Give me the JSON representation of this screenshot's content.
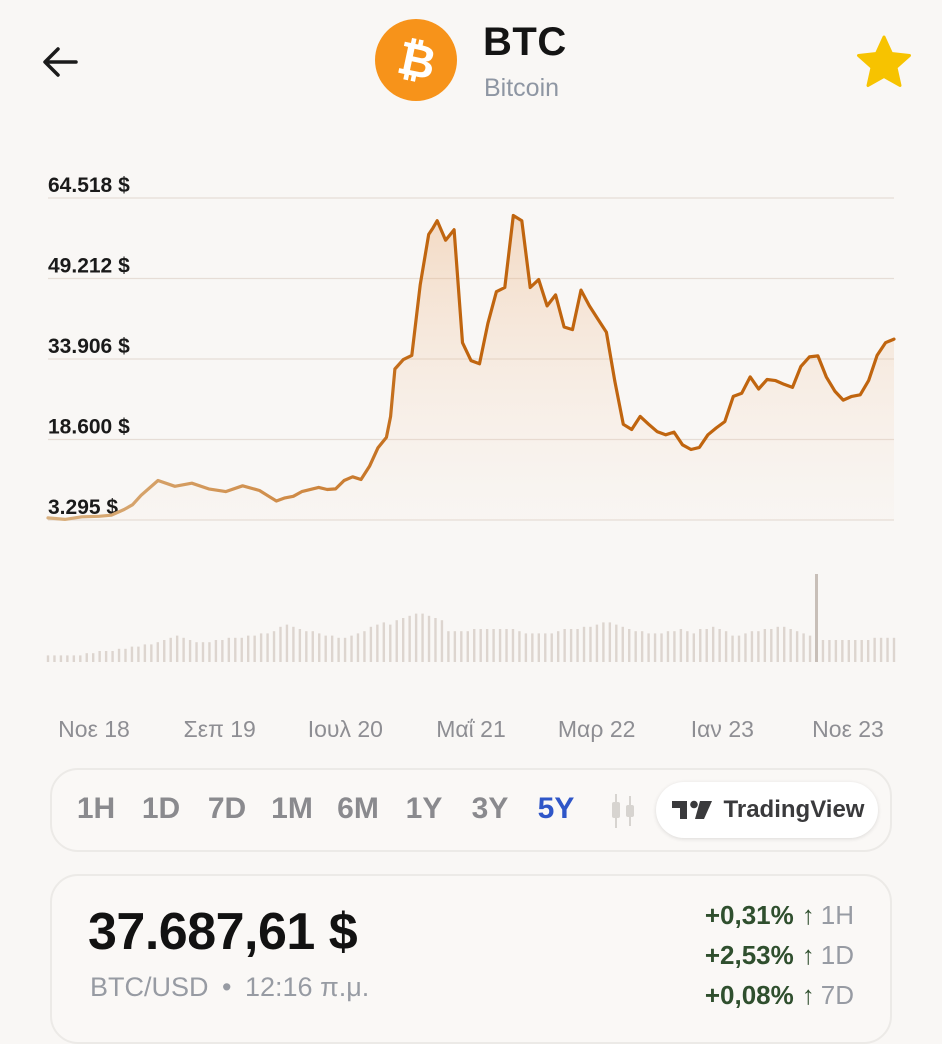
{
  "header": {
    "symbol": "BTC",
    "name": "Bitcoin",
    "back_icon": "arrow-left-icon",
    "favorite_icon": "star-icon",
    "favorite_color": "#f7c300",
    "logo_color": "#f7931a"
  },
  "chart_data": {
    "type": "area",
    "y_ticks": [
      "64.518 $",
      "49.212 $",
      "33.906 $",
      "18.600 $",
      "3.295 $"
    ],
    "y_tick_values": [
      64518,
      49212,
      33906,
      18600,
      3295
    ],
    "x_ticks": [
      "Νοε 18",
      "Σεπ 19",
      "Ιουλ 20",
      "Μαΐ 21",
      "Μαρ 22",
      "Ιαν 23",
      "Νοε 23"
    ],
    "ylim": [
      3295,
      64518
    ],
    "line_color": "#c0650f",
    "series": [
      {
        "x": [
          0.0,
          0.02,
          0.04,
          0.06,
          0.075,
          0.09,
          0.1,
          0.11,
          0.13,
          0.15,
          0.17,
          0.19,
          0.21,
          0.23,
          0.25,
          0.26,
          0.27,
          0.28,
          0.29,
          0.3,
          0.32,
          0.33,
          0.34,
          0.35,
          0.36,
          0.37,
          0.38,
          0.39,
          0.4,
          0.405,
          0.41,
          0.42,
          0.43,
          0.44,
          0.45,
          0.455,
          0.46,
          0.47,
          0.48,
          0.49,
          0.5,
          0.51,
          0.52,
          0.53,
          0.54,
          0.55,
          0.56,
          0.57,
          0.58,
          0.59,
          0.6,
          0.61,
          0.62,
          0.63,
          0.64,
          0.65,
          0.66,
          0.67,
          0.68,
          0.69,
          0.7,
          0.71,
          0.72,
          0.73,
          0.74,
          0.75,
          0.76,
          0.77,
          0.78,
          0.79,
          0.8,
          0.81,
          0.82,
          0.83,
          0.84,
          0.85,
          0.86,
          0.87,
          0.88,
          0.89,
          0.9,
          0.91,
          0.92,
          0.93,
          0.94,
          0.95,
          0.96,
          0.97,
          0.98,
          0.99,
          1.0
        ],
        "values": [
          3700,
          3400,
          3900,
          4000,
          4200,
          5300,
          6200,
          8000,
          10800,
          9700,
          10300,
          9200,
          8700,
          9800,
          8900,
          7900,
          6900,
          7500,
          7800,
          8700,
          9500,
          9100,
          9200,
          10800,
          11500,
          11000,
          13500,
          17000,
          19000,
          23000,
          32000,
          33800,
          34600,
          48000,
          57600,
          58800,
          60200,
          56500,
          58500,
          37000,
          33600,
          33000,
          40700,
          46700,
          47500,
          61200,
          60200,
          47500,
          49000,
          44000,
          46100,
          40000,
          39500,
          47000,
          44000,
          41500,
          39000,
          29700,
          21500,
          20500,
          23000,
          21500,
          20100,
          19500,
          20000,
          17600,
          16700,
          17100,
          19500,
          20800,
          22000,
          26800,
          27400,
          30500,
          28200,
          30000,
          29800,
          29100,
          28500,
          32500,
          34300,
          34500,
          30500,
          27800,
          26100,
          26800,
          27100,
          29800,
          34600,
          37000,
          37687
        ]
      }
    ],
    "volume_values": [
      3,
      3,
      3,
      3,
      3,
      3,
      4,
      4,
      5,
      5,
      5,
      6,
      6,
      7,
      7,
      8,
      8,
      9,
      10,
      11,
      12,
      11,
      10,
      9,
      9,
      9,
      10,
      10,
      11,
      11,
      11,
      12,
      12,
      13,
      13,
      14,
      16,
      17,
      16,
      15,
      14,
      14,
      13,
      12,
      12,
      11,
      11,
      12,
      13,
      14,
      16,
      17,
      18,
      17,
      19,
      20,
      21,
      22,
      22,
      21,
      20,
      19,
      14,
      14,
      14,
      14,
      15,
      15,
      15,
      15,
      15,
      15,
      15,
      14,
      13,
      13,
      13,
      13,
      13,
      14,
      15,
      15,
      15,
      16,
      16,
      17,
      18,
      18,
      17,
      16,
      15,
      14,
      14,
      13,
      13,
      13,
      14,
      14,
      15,
      14,
      13,
      15,
      15,
      16,
      15,
      14,
      12,
      12,
      13,
      14,
      14,
      15,
      15,
      16,
      16,
      15,
      14,
      13,
      12,
      40,
      10,
      10,
      10,
      10,
      10,
      10,
      10,
      10,
      11,
      11,
      11,
      11
    ],
    "volume_spike_index": 119
  },
  "ranges": {
    "items": [
      "1H",
      "1D",
      "7D",
      "1M",
      "6M",
      "1Y",
      "3Y",
      "5Y"
    ],
    "active": "5Y",
    "candle_icon": "candlestick-icon",
    "tradingview_label": "TradingView",
    "tradingview_icon": "tradingview-logo-icon",
    "active_color": "#2f56c8"
  },
  "price": {
    "value": "37.687,61 $",
    "pair": "BTC/USD",
    "separator": "•",
    "time": "12:16 π.μ.",
    "changes": [
      {
        "pct": "+0,31%",
        "arrow": "↑",
        "period": "1H"
      },
      {
        "pct": "+2,53%",
        "arrow": "↑",
        "period": "1D"
      },
      {
        "pct": "+0,08%",
        "arrow": "↑",
        "period": "7D"
      }
    ]
  }
}
